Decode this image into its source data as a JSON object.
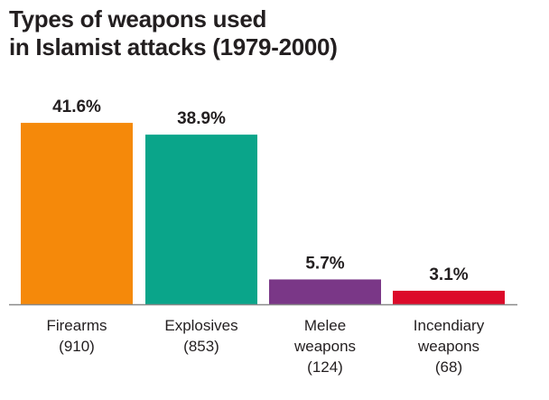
{
  "chart_data": {
    "type": "bar",
    "title_lines": [
      "Types of weapons used",
      "in Islamist attacks (1979-2000)"
    ],
    "categories": [
      {
        "lines": [
          "Firearms",
          "(910)"
        ]
      },
      {
        "lines": [
          "Explosives",
          "(853)"
        ]
      },
      {
        "lines": [
          "Melee",
          "weapons",
          "(124)"
        ]
      },
      {
        "lines": [
          "Incendiary",
          "weapons",
          "(68)"
        ]
      }
    ],
    "values": [
      41.6,
      38.9,
      5.7,
      3.1
    ],
    "value_labels": [
      "41.6%",
      "38.9%",
      "5.7%",
      "3.1%"
    ],
    "colors": [
      "#f5890a",
      "#0aa58a",
      "#7a3787",
      "#dc0a2a"
    ],
    "unit": "%",
    "grid": false,
    "legend": "none"
  }
}
